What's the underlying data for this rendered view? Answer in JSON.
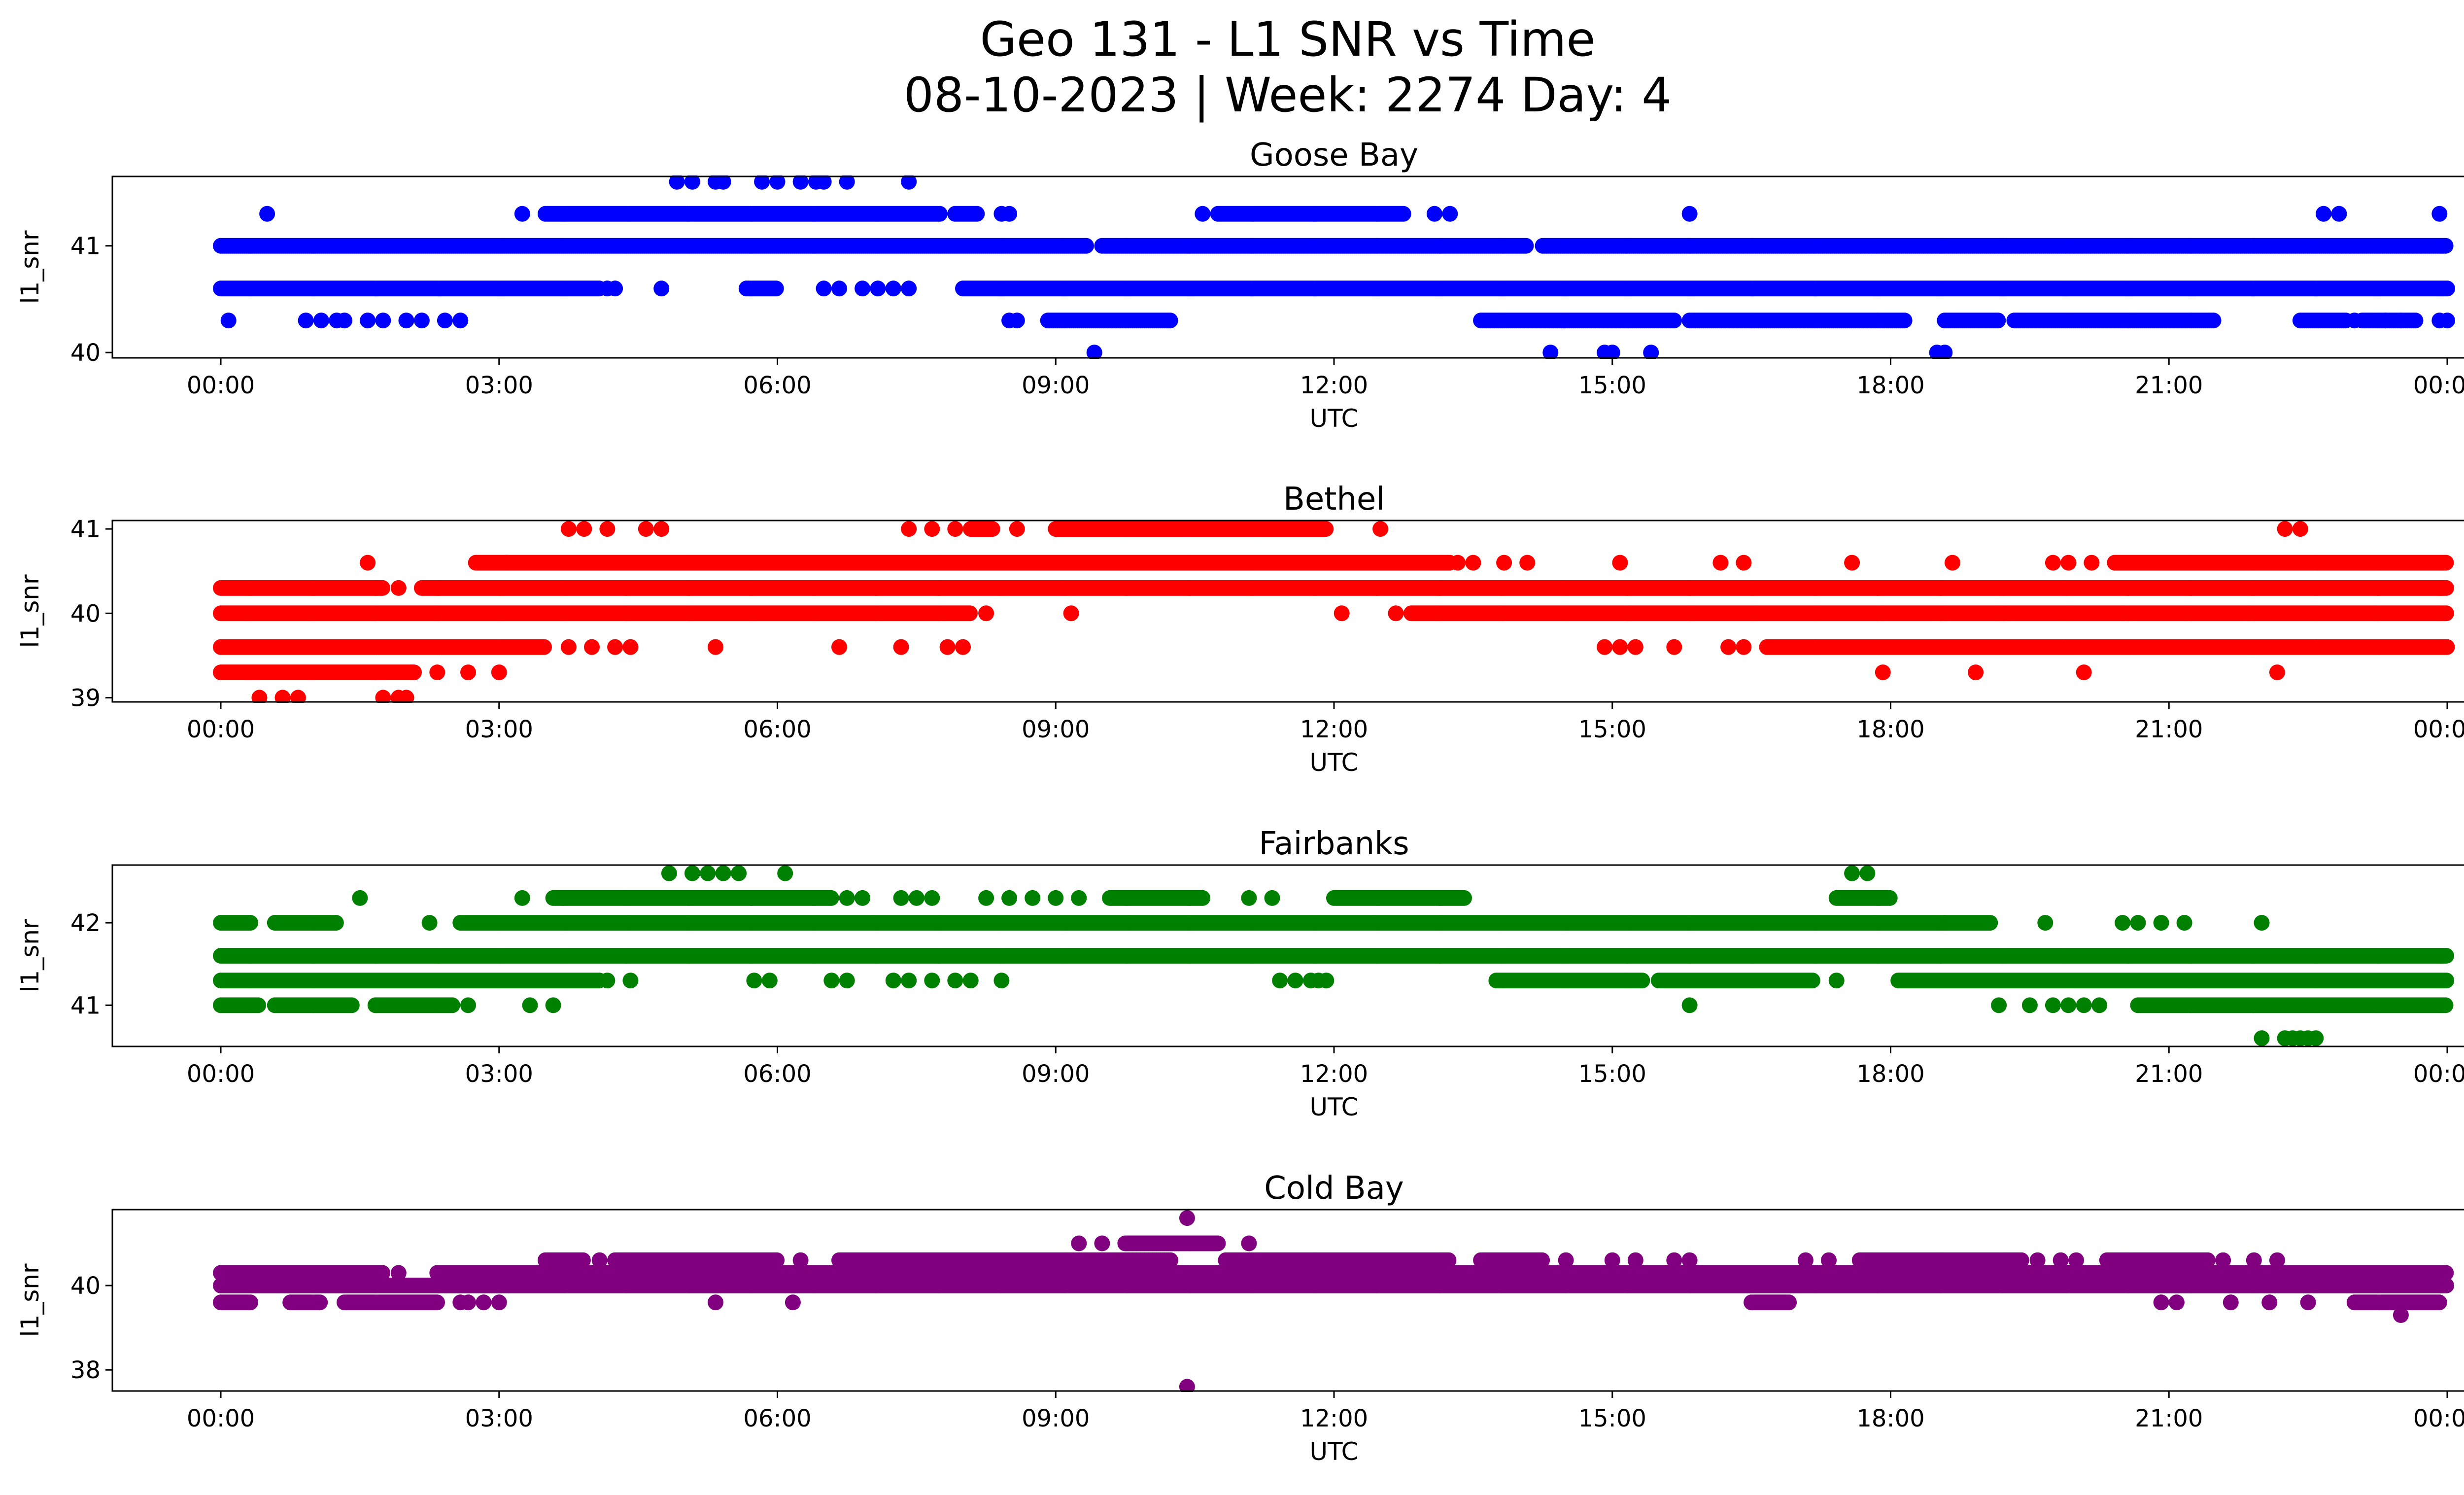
{
  "figure": {
    "title_line1": "Geo 131 - L1 SNR vs Time",
    "title_line2": "08-10-2023 | Week: 2274 Day: 4"
  },
  "chart_data": [
    {
      "type": "scatter",
      "title": "Goose Bay",
      "xlabel": "UTC",
      "ylabel": "l1_snr",
      "color": "#0000ff",
      "xlim": [
        "00:00",
        "24:00"
      ],
      "ylim": [
        39.95,
        41.65
      ],
      "x_ticks": [
        "00:00",
        "03:00",
        "06:00",
        "09:00",
        "12:00",
        "15:00",
        "18:00",
        "21:00",
        "00:00"
      ],
      "y_ticks": [
        40,
        41
      ],
      "y_levels": [
        40.0,
        40.3,
        40.6,
        41.0,
        41.3,
        41.6
      ],
      "series": [
        {
          "y": 41.0,
          "segments": [
            [
              "00:00",
              "09:20"
            ],
            [
              "09:30",
              "14:05"
            ],
            [
              "14:15",
              "24:00"
            ]
          ]
        },
        {
          "y": 40.6,
          "segments": [
            [
              "00:00",
              "04:05"
            ],
            [
              "05:40",
              "06:00"
            ],
            [
              "08:00",
              "24:00"
            ]
          ],
          "points": [
            "04:10",
            "04:15",
            "04:45",
            "06:30",
            "06:40",
            "06:55",
            "07:05",
            "07:15",
            "07:25"
          ]
        },
        {
          "y": 40.3,
          "points": [
            "00:05",
            "00:55",
            "01:05",
            "01:15",
            "01:20",
            "01:35",
            "01:45",
            "02:00",
            "02:10",
            "02:25",
            "02:35",
            "08:30",
            "08:35",
            "23:00",
            "23:20",
            "23:30",
            "23:55",
            "24:00"
          ],
          "segments": [
            [
              "08:55",
              "10:15"
            ],
            [
              "13:35",
              "15:40"
            ],
            [
              "15:50",
              "18:10"
            ],
            [
              "18:35",
              "19:10"
            ],
            [
              "19:20",
              "21:30"
            ],
            [
              "22:25",
              "22:55"
            ],
            [
              "23:05",
              "23:40"
            ]
          ]
        },
        {
          "y": 41.3,
          "points": [
            "00:30",
            "03:15",
            "08:25",
            "08:30",
            "10:35",
            "13:05",
            "13:15",
            "15:50",
            "22:40",
            "22:50",
            "23:55"
          ],
          "segments": [
            [
              "03:30",
              "07:45"
            ],
            [
              "07:55",
              "08:10"
            ],
            [
              "10:45",
              "12:45"
            ]
          ]
        },
        {
          "y": 41.6,
          "points": [
            "04:55",
            "05:05",
            "05:20",
            "05:25",
            "05:50",
            "06:00",
            "06:15",
            "06:25",
            "06:30",
            "06:45",
            "07:25"
          ]
        },
        {
          "y": 40.0,
          "points": [
            "09:25",
            "14:20",
            "14:55",
            "15:00",
            "15:25",
            "18:30",
            "18:35"
          ]
        }
      ]
    },
    {
      "type": "scatter",
      "title": "Bethel",
      "xlabel": "UTC",
      "ylabel": "l1_snr",
      "color": "#ff0000",
      "xlim": [
        "00:00",
        "24:00"
      ],
      "ylim": [
        38.95,
        41.1
      ],
      "x_ticks": [
        "00:00",
        "03:00",
        "06:00",
        "09:00",
        "12:00",
        "15:00",
        "18:00",
        "21:00",
        "00:00"
      ],
      "y_ticks": [
        39,
        40,
        41
      ],
      "y_levels": [
        39.0,
        39.3,
        39.6,
        40.0,
        40.3,
        40.6,
        41.0
      ],
      "series": [
        {
          "y": 40.0,
          "segments": [
            [
              "00:00",
              "08:05"
            ],
            [
              "12:50",
              "24:00"
            ]
          ],
          "points": [
            "08:15",
            "09:10",
            "12:05",
            "12:40"
          ]
        },
        {
          "y": 40.3,
          "segments": [
            [
              "00:00",
              "01:45"
            ],
            [
              "02:10",
              "24:00"
            ]
          ],
          "points": [
            "01:55"
          ]
        },
        {
          "y": 39.6,
          "segments": [
            [
              "00:00",
              "03:30"
            ],
            [
              "16:40",
              "24:00"
            ]
          ],
          "points": [
            "03:45",
            "04:00",
            "04:15",
            "04:25",
            "05:20",
            "06:40",
            "07:20",
            "07:50",
            "08:00",
            "14:55",
            "15:05",
            "15:15",
            "15:40",
            "16:15",
            "16:25"
          ]
        },
        {
          "y": 39.3,
          "segments": [
            [
              "00:00",
              "02:05"
            ]
          ],
          "points": [
            "02:20",
            "02:40",
            "03:00",
            "17:55",
            "18:55",
            "20:05",
            "22:10"
          ]
        },
        {
          "y": 39.0,
          "points": [
            "00:25",
            "00:40",
            "00:50",
            "01:45",
            "01:55",
            "02:00"
          ]
        },
        {
          "y": 40.6,
          "segments": [
            [
              "02:45",
              "13:15"
            ],
            [
              "20:25",
              "24:00"
            ]
          ],
          "points": [
            "01:35",
            "03:05",
            "13:20",
            "13:30",
            "13:50",
            "14:05",
            "15:05",
            "16:10",
            "16:25",
            "17:35",
            "18:40",
            "19:45",
            "19:55",
            "20:10"
          ]
        },
        {
          "y": 41.0,
          "segments": [
            [
              "09:00",
              "11:55"
            ],
            [
              "08:05",
              "08:20"
            ]
          ],
          "points": [
            "03:45",
            "03:55",
            "04:10",
            "04:35",
            "04:45",
            "07:25",
            "07:40",
            "07:55",
            "08:35",
            "12:30",
            "22:15",
            "22:25"
          ]
        }
      ]
    },
    {
      "type": "scatter",
      "title": "Fairbanks",
      "xlabel": "UTC",
      "ylabel": "l1_snr",
      "color": "#008000",
      "xlim": [
        "00:00",
        "24:00"
      ],
      "ylim": [
        40.5,
        42.7
      ],
      "x_ticks": [
        "00:00",
        "03:00",
        "06:00",
        "09:00",
        "12:00",
        "15:00",
        "18:00",
        "21:00",
        "00:00"
      ],
      "y_ticks": [
        41,
        42
      ],
      "y_levels": [
        40.6,
        41.0,
        41.3,
        41.6,
        42.0,
        42.3,
        42.6
      ],
      "series": [
        {
          "y": 41.6,
          "segments": [
            [
              "00:00",
              "24:00"
            ]
          ]
        },
        {
          "y": 41.3,
          "segments": [
            [
              "00:00",
              "04:05"
            ],
            [
              "13:45",
              "15:20"
            ],
            [
              "15:30",
              "17:10"
            ],
            [
              "18:05",
              "24:00"
            ]
          ],
          "points": [
            "04:10",
            "04:25",
            "05:45",
            "05:55",
            "06:35",
            "06:45",
            "07:15",
            "07:25",
            "07:40",
            "07:55",
            "08:05",
            "08:25",
            "11:25",
            "11:35",
            "11:45",
            "11:50",
            "11:55",
            "17:25"
          ]
        },
        {
          "y": 42.0,
          "segments": [
            [
              "00:00",
              "00:20"
            ],
            [
              "00:35",
              "01:15"
            ],
            [
              "02:35",
              "18:35"
            ],
            [
              "18:35",
              "19:05"
            ]
          ],
          "points": [
            "02:15",
            "19:40",
            "20:30",
            "20:40",
            "20:55",
            "21:10",
            "22:00"
          ]
        },
        {
          "y": 41.0,
          "segments": [
            [
              "00:00",
              "00:25"
            ],
            [
              "00:35",
              "01:25"
            ],
            [
              "01:40",
              "02:30"
            ],
            [
              "20:40",
              "24:00"
            ]
          ],
          "points": [
            "02:40",
            "03:20",
            "03:35",
            "15:50",
            "19:10",
            "19:30",
            "19:45",
            "19:55",
            "20:05",
            "20:15"
          ]
        },
        {
          "y": 42.3,
          "segments": [
            [
              "03:35",
              "06:35"
            ],
            [
              "09:35",
              "10:35"
            ],
            [
              "12:00",
              "13:25"
            ],
            [
              "17:25",
              "18:00"
            ]
          ],
          "points": [
            "01:30",
            "03:15",
            "06:45",
            "06:55",
            "07:20",
            "07:30",
            "07:40",
            "08:15",
            "08:30",
            "08:45",
            "09:00",
            "09:15",
            "11:05",
            "11:20"
          ]
        },
        {
          "y": 42.6,
          "points": [
            "04:50",
            "05:05",
            "05:15",
            "05:25",
            "05:35",
            "06:05",
            "17:35",
            "17:45"
          ]
        },
        {
          "y": 40.6,
          "points": [
            "22:00",
            "22:15",
            "22:20",
            "22:25",
            "22:30",
            "22:35"
          ]
        }
      ]
    },
    {
      "type": "scatter",
      "title": "Cold Bay",
      "xlabel": "UTC",
      "ylabel": "l1_snr",
      "color": "#800080",
      "xlim": [
        "00:00",
        "24:00"
      ],
      "ylim": [
        37.5,
        41.8
      ],
      "x_ticks": [
        "00:00",
        "03:00",
        "06:00",
        "09:00",
        "12:00",
        "15:00",
        "18:00",
        "21:00",
        "00:00"
      ],
      "y_ticks": [
        38,
        40
      ],
      "y_levels": [
        37.6,
        39.3,
        39.6,
        40.0,
        40.3,
        40.6,
        41.0,
        41.6
      ],
      "series": [
        {
          "y": 40.0,
          "segments": [
            [
              "00:00",
              "24:00"
            ]
          ]
        },
        {
          "y": 40.3,
          "segments": [
            [
              "00:00",
              "01:45"
            ],
            [
              "02:20",
              "24:00"
            ]
          ],
          "points": [
            "01:55"
          ]
        },
        {
          "y": 39.6,
          "segments": [
            [
              "00:00",
              "00:20"
            ],
            [
              "00:45",
              "01:05"
            ],
            [
              "01:20",
              "02:20"
            ],
            [
              "16:30",
              "16:55"
            ],
            [
              "23:00",
              "23:55"
            ]
          ],
          "points": [
            "02:35",
            "02:40",
            "02:50",
            "03:00",
            "05:20",
            "06:10",
            "20:55",
            "21:05",
            "21:40",
            "22:05",
            "22:30"
          ]
        },
        {
          "y": 40.6,
          "segments": [
            [
              "03:30",
              "03:55"
            ],
            [
              "04:15",
              "06:00"
            ],
            [
              "06:40",
              "10:15"
            ],
            [
              "10:50",
              "13:15"
            ],
            [
              "13:35",
              "14:15"
            ],
            [
              "17:40",
              "19:25"
            ],
            [
              "20:20",
              "21:25"
            ]
          ],
          "points": [
            "04:05",
            "06:15",
            "14:30",
            "15:00",
            "15:15",
            "15:40",
            "15:50",
            "17:05",
            "17:20",
            "19:35",
            "19:50",
            "20:00",
            "21:35",
            "21:55",
            "22:10"
          ]
        },
        {
          "y": 41.0,
          "segments": [
            [
              "09:45",
              "10:45"
            ]
          ],
          "points": [
            "09:15",
            "09:30",
            "11:05"
          ]
        },
        {
          "y": 41.6,
          "points": [
            "10:25"
          ]
        },
        {
          "y": 37.6,
          "points": [
            "10:25"
          ]
        },
        {
          "y": 39.3,
          "points": [
            "23:30"
          ]
        }
      ]
    }
  ]
}
